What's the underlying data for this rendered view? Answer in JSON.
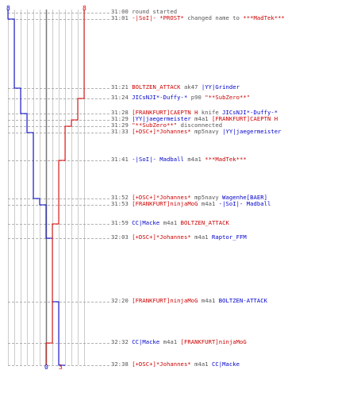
{
  "colors": {
    "red": "#e00000",
    "blue": "#0000cc",
    "gray": "#555555",
    "grid": "#999999",
    "grid_light": "#cccccc"
  },
  "scoreboard": {
    "left_top": "8",
    "right_top": "8",
    "blue_bottom": "0",
    "red_bottom": "3"
  },
  "events": [
    {
      "time": "31:00",
      "parts": [
        {
          "text": "round started",
          "c": "gray"
        }
      ]
    },
    {
      "time": "31:01",
      "parts": [
        {
          "text": "-|SoI|- *PROST*",
          "c": "red"
        },
        {
          "text": " changed name to ",
          "c": "gray"
        },
        {
          "text": "***MadTek***",
          "c": "red"
        }
      ]
    },
    {
      "time": "31:21",
      "parts": [
        {
          "text": "BOLTZEN_ATTACK",
          "c": "red"
        },
        {
          "text": " ak47 ",
          "c": "gray"
        },
        {
          "text": "|YY|Grinder",
          "c": "blue"
        }
      ]
    },
    {
      "time": "31:24",
      "parts": [
        {
          "text": "JICsNJI*-Duffy-*",
          "c": "blue"
        },
        {
          "text": " p90 ",
          "c": "gray"
        },
        {
          "text": "\"**SubZero**\"",
          "c": "red"
        }
      ]
    },
    {
      "time": "31:28",
      "parts": [
        {
          "text": "[FRANKFURT]CAEPTN H",
          "c": "red"
        },
        {
          "text": " knife ",
          "c": "gray"
        },
        {
          "text": "JICsNJI*-Duffy-*",
          "c": "blue"
        }
      ]
    },
    {
      "time": "31:29",
      "parts": [
        {
          "text": "|YY|jaegermeister",
          "c": "blue"
        },
        {
          "text": " m4a1 ",
          "c": "gray"
        },
        {
          "text": "[FRANKFURT]CAEPTN H",
          "c": "red"
        }
      ]
    },
    {
      "time": "31:29",
      "parts": [
        {
          "text": "\"**SubZero**\"",
          "c": "red"
        },
        {
          "text": " disconnected",
          "c": "gray"
        }
      ]
    },
    {
      "time": "31:33",
      "parts": [
        {
          "text": "[+DSC+]*Johannes*",
          "c": "red"
        },
        {
          "text": " mp5navy ",
          "c": "gray"
        },
        {
          "text": "|YY|jaegermeister",
          "c": "blue"
        }
      ]
    },
    {
      "time": "31:41",
      "parts": [
        {
          "text": "-|SoI|- Madball",
          "c": "blue"
        },
        {
          "text": " m4a1 ",
          "c": "gray"
        },
        {
          "text": "***MadTek***",
          "c": "red"
        }
      ]
    },
    {
      "time": "31:52",
      "parts": [
        {
          "text": "[+DSC+]*Johannes*",
          "c": "red"
        },
        {
          "text": " mp5navy ",
          "c": "gray"
        },
        {
          "text": "Wagenhe[BAER]",
          "c": "blue"
        }
      ]
    },
    {
      "time": "31:53",
      "parts": [
        {
          "text": "[FRANKFURT]ninjaMoG",
          "c": "red"
        },
        {
          "text": " m4a1 ",
          "c": "gray"
        },
        {
          "text": "-|SoI|- Madball",
          "c": "blue"
        }
      ]
    },
    {
      "time": "31:59",
      "parts": [
        {
          "text": "CC|Macke",
          "c": "blue"
        },
        {
          "text": " m4a1 ",
          "c": "gray"
        },
        {
          "text": "BOLTZEN_ATTACK",
          "c": "red"
        }
      ]
    },
    {
      "time": "32:03",
      "parts": [
        {
          "text": "[+DSC+]*Johannes*",
          "c": "red"
        },
        {
          "text": " m4a1 ",
          "c": "gray"
        },
        {
          "text": "Raptor_FFM",
          "c": "blue"
        }
      ]
    },
    {
      "time": "32:20",
      "parts": [
        {
          "text": "[FRANKFURT]ninjaMoG",
          "c": "red"
        },
        {
          "text": " m4a1 ",
          "c": "gray"
        },
        {
          "text": "BOLTZEN-ATTACK",
          "c": "blue"
        }
      ]
    },
    {
      "time": "32:32",
      "parts": [
        {
          "text": "CC|Macke",
          "c": "blue"
        },
        {
          "text": " m4a1 ",
          "c": "gray"
        },
        {
          "text": "[FRANKFURT]ninjaMoG",
          "c": "red"
        }
      ]
    },
    {
      "time": "32:38",
      "parts": [
        {
          "text": "[+DSC+]*Johannes*",
          "c": "red"
        },
        {
          "text": " m4a1 ",
          "c": "gray"
        },
        {
          "text": "CC|Macke",
          "c": "blue"
        }
      ]
    }
  ]
}
